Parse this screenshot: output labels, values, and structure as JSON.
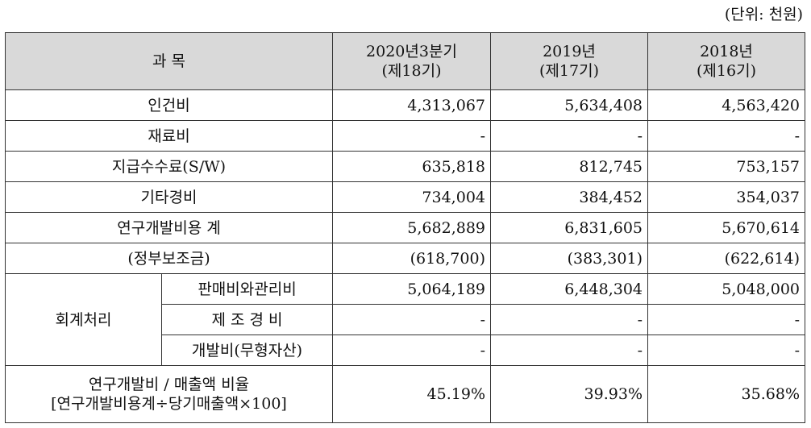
{
  "unit": "(단위: 천원)",
  "table": {
    "header": {
      "subject": "과 목",
      "periods": [
        {
          "line1": "2020년3분기",
          "line2": "(제18기)"
        },
        {
          "line1": "2019년",
          "line2": "(제17기)"
        },
        {
          "line1": "2018년",
          "line2": "(제16기)"
        }
      ]
    },
    "rows": [
      {
        "label": "인건비",
        "values": [
          "4,313,067",
          "5,634,408",
          "4,563,420"
        ]
      },
      {
        "label": "재료비",
        "values": [
          "-",
          "-",
          "-"
        ]
      },
      {
        "label": "지급수수료(S/W)",
        "values": [
          "635,818",
          "812,745",
          "753,157"
        ]
      },
      {
        "label": "기타경비",
        "values": [
          "734,004",
          "384,452",
          "354,037"
        ]
      },
      {
        "label": "연구개발비용 계",
        "values": [
          "5,682,889",
          "6,831,605",
          "5,670,614"
        ]
      },
      {
        "label": "(정부보조금)",
        "values": [
          "(618,700)",
          "(383,301)",
          "(622,614)"
        ]
      }
    ],
    "accounting": {
      "label": "회계처리",
      "rows": [
        {
          "label": "판매비와관리비",
          "values": [
            "5,064,189",
            "6,448,304",
            "5,048,000"
          ]
        },
        {
          "label": "제 조 경 비",
          "values": [
            "-",
            "-",
            "-"
          ]
        },
        {
          "label": "개발비(무형자산)",
          "values": [
            "-",
            "-",
            "-"
          ]
        }
      ]
    },
    "ratio": {
      "line1": "연구개발비 / 매출액 비율",
      "line2": "[연구개발비용계÷당기매출액×100]",
      "values": [
        "45.19%",
        "39.93%",
        "35.68%"
      ]
    }
  }
}
